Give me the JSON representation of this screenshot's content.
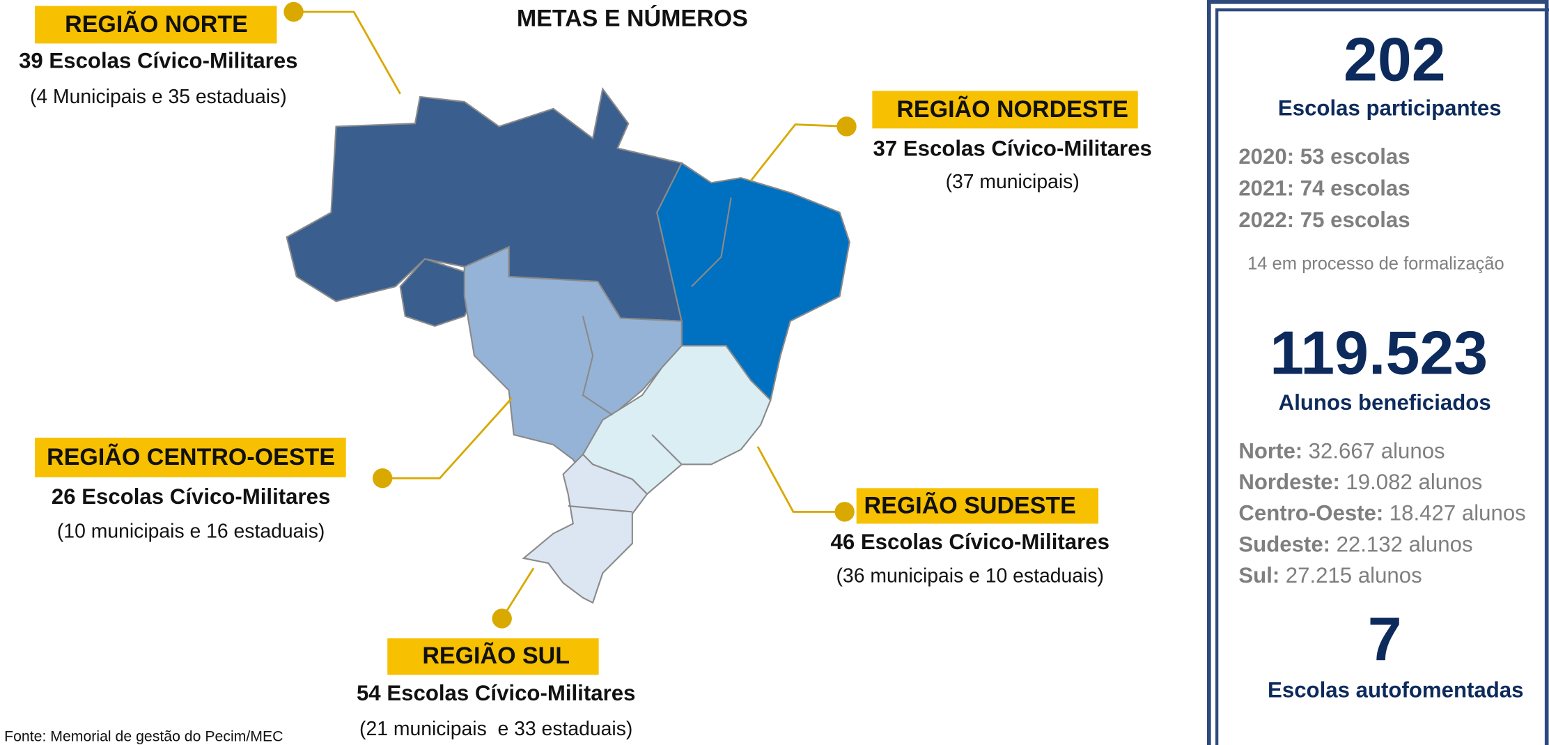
{
  "title": "METAS E NÚMEROS",
  "regions": [
    {
      "name": "REGIÃO NORTE",
      "schools": "39 Escolas Cívico-Militares",
      "detail": "(4 Municipais e 35 estaduais)"
    },
    {
      "name": "REGIÃO NORDESTE",
      "schools": "37 Escolas Cívico-Militares",
      "detail": "(37 municipais)"
    },
    {
      "name": "REGIÃO CENTRO-OESTE",
      "schools": "26 Escolas Cívico-Militares",
      "detail": "(10 municipais e 16 estaduais)"
    },
    {
      "name": "REGIÃO SUDESTE",
      "schools": "46 Escolas Cívico-Militares",
      "detail": "(36 municipais e 10 estaduais)"
    },
    {
      "name": "REGIÃO SUL",
      "schools": "54 Escolas Cívico-Militares",
      "detail": "(21 municipais  e 33 estaduais)"
    }
  ],
  "source": "Fonte: Memorial de gestão do Pecim/MEC",
  "sidebar": {
    "schools_total": "202",
    "schools_label": "Escolas participantes",
    "years": [
      "2020: 53 escolas",
      "2021: 74 escolas",
      "2022: 75 escolas"
    ],
    "pending": "14 em processo de formalização",
    "students_total": "119.523",
    "students_label": "Alunos beneficiados",
    "students_by_region": [
      {
        "region": "Norte:",
        "count": "32.667 alunos"
      },
      {
        "region": "Nordeste:",
        "count": "19.082 alunos"
      },
      {
        "region": "Centro-Oeste:",
        "count": "18.427 alunos"
      },
      {
        "region": "Sudeste:",
        "count": "22.132 alunos"
      },
      {
        "region": "Sul:",
        "count": "27.215 alunos"
      }
    ],
    "self_funded": "7",
    "self_funded_label": "Escolas autofomentadas"
  }
}
